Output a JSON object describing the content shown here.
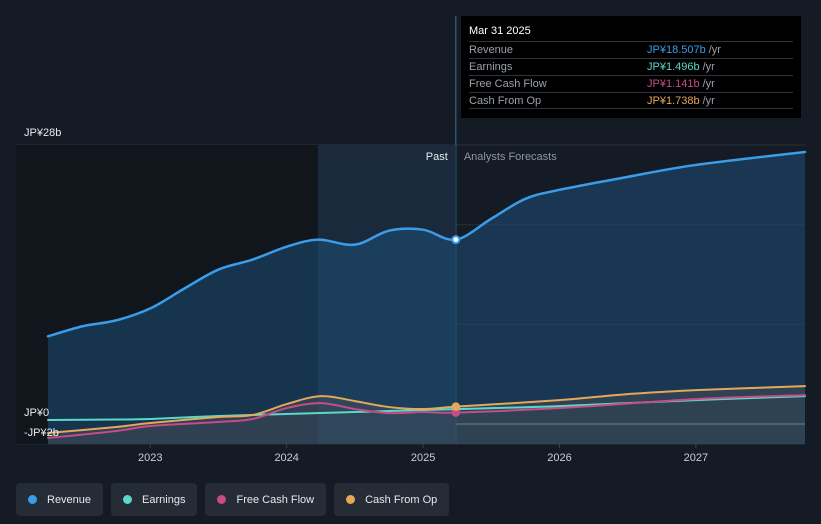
{
  "chart_data": {
    "type": "line",
    "currency_prefix": "JP¥",
    "y_axis_labels": {
      "top": "JP¥28b",
      "zero": "JP¥0",
      "bottom": "-JP¥2b"
    },
    "ylim": [
      -2,
      28
    ],
    "x_ticks": [
      {
        "label": "2023",
        "value": 2023
      },
      {
        "label": "2024",
        "value": 2024
      },
      {
        "label": "2025",
        "value": 2025
      },
      {
        "label": "2026",
        "value": 2026
      },
      {
        "label": "2027",
        "value": 2027
      }
    ],
    "xlim": [
      2022.25,
      2027.8
    ],
    "past_label": "Past",
    "forecast_label": "Analysts Forecasts",
    "divider_x": 2025.24,
    "shaded_start_x": 2024.23,
    "series": [
      {
        "name": "Revenue",
        "color": "#3b9ce8",
        "filled": true,
        "points": [
          [
            2022.25,
            8.8
          ],
          [
            2022.5,
            9.8
          ],
          [
            2022.75,
            10.4
          ],
          [
            2023.0,
            11.6
          ],
          [
            2023.25,
            13.6
          ],
          [
            2023.5,
            15.5
          ],
          [
            2023.75,
            16.5
          ],
          [
            2024.0,
            17.8
          ],
          [
            2024.23,
            18.5
          ],
          [
            2024.5,
            18.0
          ],
          [
            2024.75,
            19.4
          ],
          [
            2025.0,
            19.5
          ],
          [
            2025.24,
            18.5
          ],
          [
            2025.5,
            20.6
          ],
          [
            2025.75,
            22.6
          ],
          [
            2026.0,
            23.5
          ],
          [
            2026.5,
            24.8
          ],
          [
            2027.0,
            26.0
          ],
          [
            2027.8,
            27.3
          ]
        ]
      },
      {
        "name": "Earnings",
        "color": "#5ad8c8",
        "points": [
          [
            2022.25,
            0.4
          ],
          [
            2022.75,
            0.45
          ],
          [
            2023.0,
            0.5
          ],
          [
            2023.5,
            0.8
          ],
          [
            2024.0,
            1.0
          ],
          [
            2024.5,
            1.2
          ],
          [
            2025.0,
            1.4
          ],
          [
            2025.24,
            1.496
          ],
          [
            2026.0,
            1.8
          ],
          [
            2027.0,
            2.4
          ],
          [
            2027.8,
            2.8
          ]
        ]
      },
      {
        "name": "Free Cash Flow",
        "color": "#c54c87",
        "points": [
          [
            2022.25,
            -1.4
          ],
          [
            2022.75,
            -0.7
          ],
          [
            2023.0,
            -0.2
          ],
          [
            2023.5,
            0.2
          ],
          [
            2023.75,
            0.5
          ],
          [
            2024.0,
            1.6
          ],
          [
            2024.25,
            2.1
          ],
          [
            2024.5,
            1.5
          ],
          [
            2024.75,
            1.1
          ],
          [
            2025.0,
            1.2
          ],
          [
            2025.24,
            1.141
          ],
          [
            2026.0,
            1.6
          ],
          [
            2027.0,
            2.5
          ],
          [
            2027.8,
            2.9
          ]
        ]
      },
      {
        "name": "Cash From Op",
        "color": "#e4a85a",
        "points": [
          [
            2022.25,
            -0.9
          ],
          [
            2022.75,
            -0.3
          ],
          [
            2023.0,
            0.1
          ],
          [
            2023.5,
            0.7
          ],
          [
            2023.75,
            0.9
          ],
          [
            2024.0,
            2.0
          ],
          [
            2024.25,
            2.8
          ],
          [
            2024.5,
            2.3
          ],
          [
            2024.75,
            1.7
          ],
          [
            2025.0,
            1.5
          ],
          [
            2025.24,
            1.738
          ],
          [
            2026.0,
            2.4
          ],
          [
            2026.5,
            3.0
          ],
          [
            2027.0,
            3.4
          ],
          [
            2027.8,
            3.8
          ]
        ]
      }
    ],
    "highlight_x": 2025.24
  },
  "tooltip": {
    "date": "Mar 31 2025",
    "rows": [
      {
        "label": "Revenue",
        "value": "JP¥18.507b",
        "unit": "/yr",
        "color": "#3b9ce8"
      },
      {
        "label": "Earnings",
        "value": "JP¥1.496b",
        "unit": "/yr",
        "color": "#5ad8c8"
      },
      {
        "label": "Free Cash Flow",
        "value": "JP¥1.141b",
        "unit": "/yr",
        "color": "#c54c87"
      },
      {
        "label": "Cash From Op",
        "value": "JP¥1.738b",
        "unit": "/yr",
        "color": "#e4a85a"
      }
    ]
  },
  "legend": [
    {
      "label": "Revenue",
      "color": "#3b9ce8"
    },
    {
      "label": "Earnings",
      "color": "#5ad8c8"
    },
    {
      "label": "Free Cash Flow",
      "color": "#c54c87"
    },
    {
      "label": "Cash From Op",
      "color": "#e4a85a"
    }
  ]
}
